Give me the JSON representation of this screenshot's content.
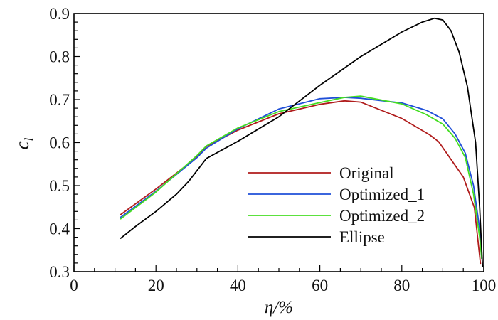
{
  "chart_data": {
    "type": "line",
    "title": "",
    "xlabel": "η/%",
    "ylabel": "c_l",
    "ylabel_main": "c",
    "ylabel_sub": "l",
    "xlim": [
      0,
      100
    ],
    "ylim": [
      0.3,
      0.9
    ],
    "xticks": [
      "0",
      "20",
      "40",
      "60",
      "80",
      "100"
    ],
    "yticks": [
      "0.3",
      "0.4",
      "0.5",
      "0.6",
      "0.7",
      "0.8",
      "0.9"
    ],
    "grid": false,
    "legend_position": "lower-center",
    "series": [
      {
        "name": "Original",
        "color": "#b01c1c",
        "x": [
          11.3,
          20,
          30,
          32.3,
          40,
          50,
          60,
          66,
          70,
          80,
          86.8,
          89,
          92.2,
          95,
          97.7,
          99.2
        ],
        "y": [
          0.432,
          0.492,
          0.566,
          0.591,
          0.629,
          0.667,
          0.689,
          0.697,
          0.694,
          0.656,
          0.618,
          0.602,
          0.558,
          0.52,
          0.449,
          0.318
        ]
      },
      {
        "name": "Optimized_1",
        "color": "#1f4fd8",
        "x": [
          11.3,
          20,
          30,
          32.3,
          40,
          50,
          60,
          66,
          70,
          80,
          86,
          90,
          93,
          95.5,
          97.5,
          99,
          99.5
        ],
        "y": [
          0.426,
          0.487,
          0.565,
          0.587,
          0.632,
          0.678,
          0.702,
          0.705,
          0.703,
          0.692,
          0.675,
          0.655,
          0.62,
          0.575,
          0.5,
          0.4,
          0.33
        ]
      },
      {
        "name": "Optimized_2",
        "color": "#44dd22",
        "x": [
          11.3,
          20,
          30,
          32.3,
          40,
          50,
          60,
          66,
          70,
          80,
          86,
          90,
          93,
          95.5,
          97.5,
          99,
          99.5
        ],
        "y": [
          0.422,
          0.485,
          0.57,
          0.592,
          0.634,
          0.672,
          0.693,
          0.705,
          0.708,
          0.69,
          0.665,
          0.643,
          0.61,
          0.565,
          0.48,
          0.38,
          0.33
        ]
      },
      {
        "name": "Ellipse",
        "color": "#000000",
        "x": [
          11.3,
          15,
          20,
          25,
          28,
          32.3,
          40,
          50,
          60,
          70,
          80,
          85,
          88,
          90,
          92,
          94,
          96,
          98,
          99,
          99.7
        ],
        "y": [
          0.377,
          0.405,
          0.44,
          0.48,
          0.51,
          0.563,
          0.603,
          0.66,
          0.733,
          0.8,
          0.857,
          0.88,
          0.889,
          0.885,
          0.86,
          0.81,
          0.73,
          0.6,
          0.45,
          0.31
        ]
      }
    ]
  }
}
